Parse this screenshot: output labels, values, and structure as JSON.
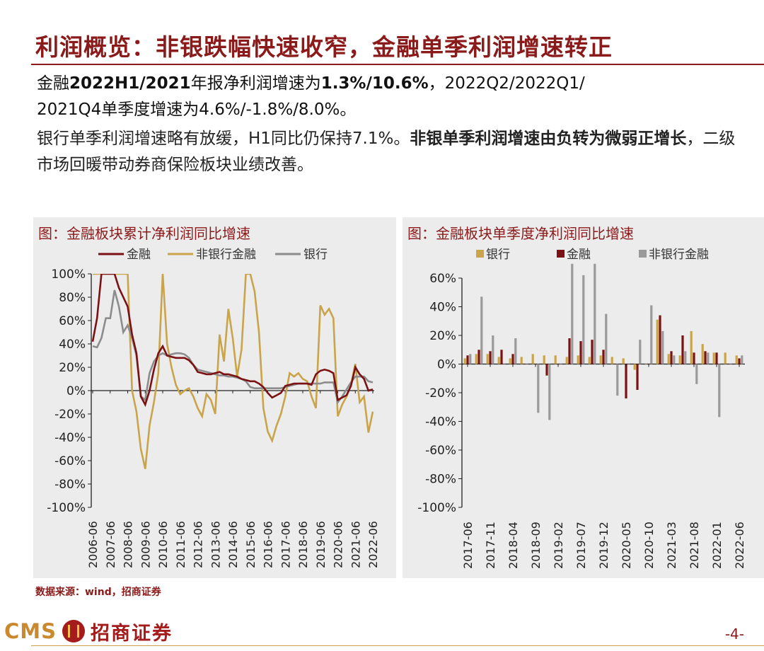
{
  "page": {
    "title": "利润概览：非银跌幅快速收窄，金融单季利润增速转正",
    "summary_line1": [
      {
        "t": "金融",
        "b": false
      },
      {
        "t": "2022H1/2021",
        "b": true
      },
      {
        "t": "年报净利润增速为",
        "b": false
      },
      {
        "t": "1.3%/10.6%",
        "b": true
      },
      {
        "t": "，2022Q2/2022Q1/",
        "b": false
      }
    ],
    "summary_line2": "2021Q4单季度增速为4.6%/-1.8%/8.0%。",
    "summary_para2": [
      {
        "t": "银行单季利润增速略有放缓，H1同比仍保持7.1%。",
        "b": false
      },
      {
        "t": "非银单季利润增速由负转为微弱正增长",
        "b": true
      },
      {
        "t": "，二级市场回暖带动券商保险板块业绩改善。",
        "b": false
      }
    ],
    "source": "数据来源：wind，招商证券",
    "logo_text": "CMS",
    "logo_cn": "招商证券",
    "page_number": "-4-"
  },
  "chart_data": [
    {
      "type": "line",
      "title": "图：金融板块累计净利润同比增速",
      "ylim": [
        -100,
        100
      ],
      "y_ticks": [
        "100%",
        "80%",
        "60%",
        "40%",
        "20%",
        "0%",
        "-20%",
        "-40%",
        "-60%",
        "-80%",
        "-100%"
      ],
      "x_tick_labels": [
        "2006-06",
        "2007-06",
        "2008-06",
        "2009-06",
        "2010-06",
        "2011-06",
        "2012-06",
        "2013-06",
        "2014-06",
        "2015-06",
        "2016-06",
        "2017-06",
        "2018-06",
        "2019-06",
        "2020-06",
        "2021-06",
        "2022-06"
      ],
      "x": [
        "2006-06",
        "2006-09",
        "2006-12",
        "2007-03",
        "2007-06",
        "2007-09",
        "2007-12",
        "2008-03",
        "2008-06",
        "2008-09",
        "2008-12",
        "2009-03",
        "2009-06",
        "2009-09",
        "2009-12",
        "2010-03",
        "2010-06",
        "2010-09",
        "2010-12",
        "2011-03",
        "2011-06",
        "2011-09",
        "2011-12",
        "2012-03",
        "2012-06",
        "2012-09",
        "2012-12",
        "2013-03",
        "2013-06",
        "2013-09",
        "2013-12",
        "2014-03",
        "2014-06",
        "2014-09",
        "2014-12",
        "2015-03",
        "2015-06",
        "2015-09",
        "2015-12",
        "2016-03",
        "2016-06",
        "2016-09",
        "2016-12",
        "2017-03",
        "2017-06",
        "2017-09",
        "2017-12",
        "2018-03",
        "2018-06",
        "2018-09",
        "2018-12",
        "2019-03",
        "2019-06",
        "2019-09",
        "2019-12",
        "2020-03",
        "2020-06",
        "2020-09",
        "2020-12",
        "2021-03",
        "2021-06",
        "2021-09",
        "2021-12",
        "2022-03",
        "2022-06"
      ],
      "series": [
        {
          "name": "金融",
          "color": "#7b1113",
          "values": [
            42,
            62,
            100,
            100,
            100,
            100,
            88,
            80,
            72,
            48,
            32,
            -5,
            -12,
            0,
            18,
            32,
            38,
            30,
            29,
            28,
            28,
            28,
            26,
            22,
            16,
            15,
            14,
            14,
            15,
            16,
            14,
            14,
            13,
            12,
            10,
            9,
            8,
            8,
            6,
            3,
            -2,
            -6,
            -4,
            -2,
            4,
            5,
            6,
            6,
            6,
            6,
            5,
            14,
            17,
            18,
            17,
            15,
            -8,
            -6,
            -4,
            4,
            20,
            14,
            10,
            0,
            1
          ]
        },
        {
          "name": "非银行金融",
          "color": "#c9a44a",
          "values": [
            100,
            100,
            100,
            100,
            100,
            100,
            100,
            100,
            100,
            0,
            -18,
            -50,
            -67,
            -30,
            -10,
            15,
            100,
            40,
            20,
            5,
            -3,
            0,
            2,
            -5,
            -15,
            -22,
            -3,
            -8,
            -20,
            48,
            25,
            70,
            45,
            12,
            35,
            100,
            100,
            85,
            50,
            -15,
            -35,
            -43,
            -30,
            -20,
            -5,
            15,
            12,
            15,
            10,
            8,
            -5,
            -15,
            73,
            65,
            70,
            62,
            -22,
            -12,
            -5,
            5,
            23,
            -10,
            -5,
            -36,
            -18
          ]
        },
        {
          "name": "银行",
          "color": "#8c8c8c",
          "values": [
            38,
            37,
            45,
            62,
            62,
            86,
            72,
            50,
            56,
            45,
            30,
            -5,
            -8,
            15,
            25,
            30,
            32,
            30,
            31,
            32,
            32,
            31,
            28,
            22,
            18,
            17,
            16,
            15,
            14,
            13,
            13,
            12,
            12,
            11,
            10,
            8,
            3,
            2,
            2,
            2,
            2,
            2,
            2,
            2,
            3,
            4,
            5,
            6,
            6,
            6,
            6,
            6,
            6,
            7,
            7,
            7,
            -10,
            -5,
            1,
            7,
            12,
            12,
            12,
            8,
            7
          ]
        }
      ],
      "legend": [
        "金融",
        "非银行金融",
        "银行"
      ],
      "legend_position": "top"
    },
    {
      "type": "bar",
      "title": "图：金融板块单季度净利润同比增速",
      "ylim": [
        -100,
        60
      ],
      "y_ticks": [
        "60%",
        "40%",
        "20%",
        "0%",
        "-20%",
        "-40%",
        "-60%",
        "-80%",
        "-100%"
      ],
      "categories": [
        "2017-06",
        "2017-09",
        "2017-11",
        "2018-02",
        "2018-04",
        "2018-07",
        "2018-09",
        "2018-12",
        "2019-02",
        "2019-05",
        "2019-07",
        "2019-10",
        "2019-12",
        "2020-03",
        "2020-05",
        "2020-08",
        "2020-10",
        "2021-01",
        "2021-03",
        "2021-06",
        "2021-08",
        "2021-11",
        "2022-01",
        "2022-04",
        "2022-06"
      ],
      "x_tick_labels": [
        "2017-06",
        "2017-11",
        "2018-04",
        "2018-09",
        "2019-02",
        "2019-07",
        "2019-12",
        "2020-05",
        "2020-10",
        "2021-03",
        "2021-08",
        "2022-01",
        "2022-06"
      ],
      "series": [
        {
          "name": "银行",
          "color": "#c9a44a",
          "values": [
            4,
            7,
            7,
            5,
            4,
            5,
            7,
            6,
            6,
            5,
            6,
            5,
            6,
            5,
            4,
            -4,
            0,
            31,
            7,
            6,
            23,
            14,
            8,
            8,
            6
          ]
        },
        {
          "name": "金融",
          "color": "#7b1113",
          "values": [
            6,
            10,
            9,
            10,
            7,
            0,
            0,
            -8,
            0,
            18,
            16,
            17,
            10,
            0,
            -24,
            -18,
            0,
            34,
            9,
            20,
            8,
            9,
            8,
            0,
            4
          ]
        },
        {
          "name": "非银行金融",
          "color": "#9a9a9a",
          "values": [
            7,
            47,
            20,
            0,
            18,
            0,
            -34,
            -39,
            0,
            70,
            62,
            70,
            35,
            -22,
            0,
            17,
            41,
            23,
            6,
            9,
            -14,
            8,
            -37,
            0,
            6
          ]
        }
      ],
      "legend": [
        "银行",
        "金融",
        "非银行金融"
      ],
      "legend_position": "top"
    }
  ]
}
